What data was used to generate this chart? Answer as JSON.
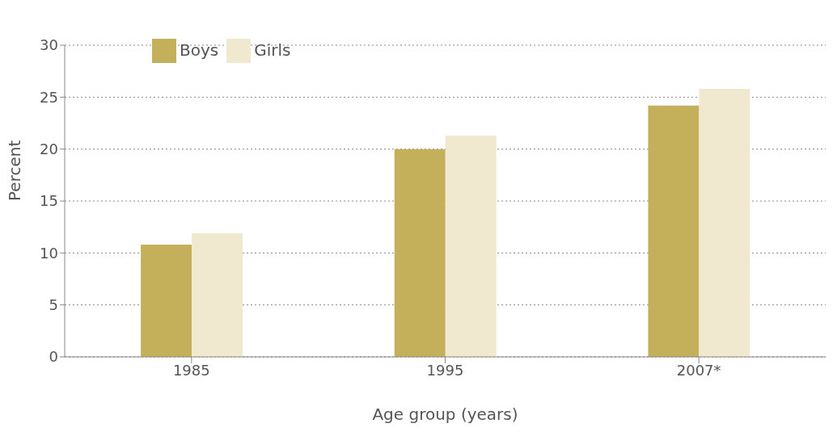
{
  "chart_data": {
    "type": "bar",
    "xlabel": "Age group (years)",
    "ylabel": "Percent",
    "categories": [
      "1985",
      "1995",
      "2007*"
    ],
    "series": [
      {
        "name": "Boys",
        "color": "#c4b05a",
        "values": [
          10.8,
          20.0,
          24.2
        ]
      },
      {
        "name": "Girls",
        "color": "#f0e8cf",
        "values": [
          11.9,
          21.3,
          25.8
        ]
      }
    ],
    "ylim": [
      0,
      30
    ],
    "yticks": [
      0,
      5,
      10,
      15,
      20,
      25,
      30
    ],
    "grid": "y",
    "legend": "top left"
  }
}
